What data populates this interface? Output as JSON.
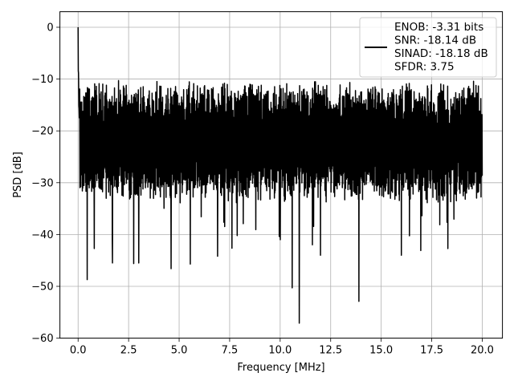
{
  "chart_data": {
    "type": "line",
    "title": "",
    "xlabel": "Frequency [MHz]",
    "ylabel": "PSD [dB]",
    "xlim": [
      -0.9,
      21.0
    ],
    "ylim": [
      -60,
      3
    ],
    "xticks": [
      0.0,
      2.5,
      5.0,
      7.5,
      10.0,
      12.5,
      15.0,
      17.5,
      20.0
    ],
    "xtick_labels": [
      "0.0",
      "2.5",
      "5.0",
      "7.5",
      "10.0",
      "12.5",
      "15.0",
      "17.5",
      "20.0"
    ],
    "yticks": [
      0,
      -10,
      -20,
      -30,
      -40,
      -50,
      -60
    ],
    "ytick_labels": [
      "0",
      "−10",
      "−20",
      "−30",
      "−40",
      "−50",
      "−60"
    ],
    "grid": true,
    "legend_position": "top-right",
    "legend_lines": [
      "ENOB: -3.31 bits",
      "SNR: -18.14 dB",
      "SINAD: -18.18 dB",
      "SFDR: 3.75"
    ],
    "series": [
      {
        "color": "#000000",
        "x_range": [
          0.0,
          20.0
        ],
        "peak": {
          "x": 0.0,
          "y": 0.0
        },
        "noise_floor_mean": -22,
        "noise_upper_envelope": -13,
        "noise_lower_envelope": -33,
        "spikes": [
          {
            "x": 0.45,
            "y": -48.7
          },
          {
            "x": 0.8,
            "y": -42.7
          },
          {
            "x": 1.7,
            "y": -45.5
          },
          {
            "x": 2.75,
            "y": -45.6
          },
          {
            "x": 3.0,
            "y": -45.5
          },
          {
            "x": 4.6,
            "y": -46.6
          },
          {
            "x": 5.55,
            "y": -45.7
          },
          {
            "x": 6.9,
            "y": -44.2
          },
          {
            "x": 10.0,
            "y": -41.0
          },
          {
            "x": 10.6,
            "y": -50.3
          },
          {
            "x": 10.95,
            "y": -57.1
          },
          {
            "x": 11.6,
            "y": -42.0
          },
          {
            "x": 13.9,
            "y": -52.9
          },
          {
            "x": 12.0,
            "y": -44.0
          },
          {
            "x": 16.0,
            "y": -44.0
          },
          {
            "x": 18.3,
            "y": -42.7
          },
          {
            "x": 8.5,
            "y": -11.0
          },
          {
            "x": 14.7,
            "y": -11.5
          },
          {
            "x": 2.0,
            "y": -10.3
          }
        ]
      }
    ]
  }
}
